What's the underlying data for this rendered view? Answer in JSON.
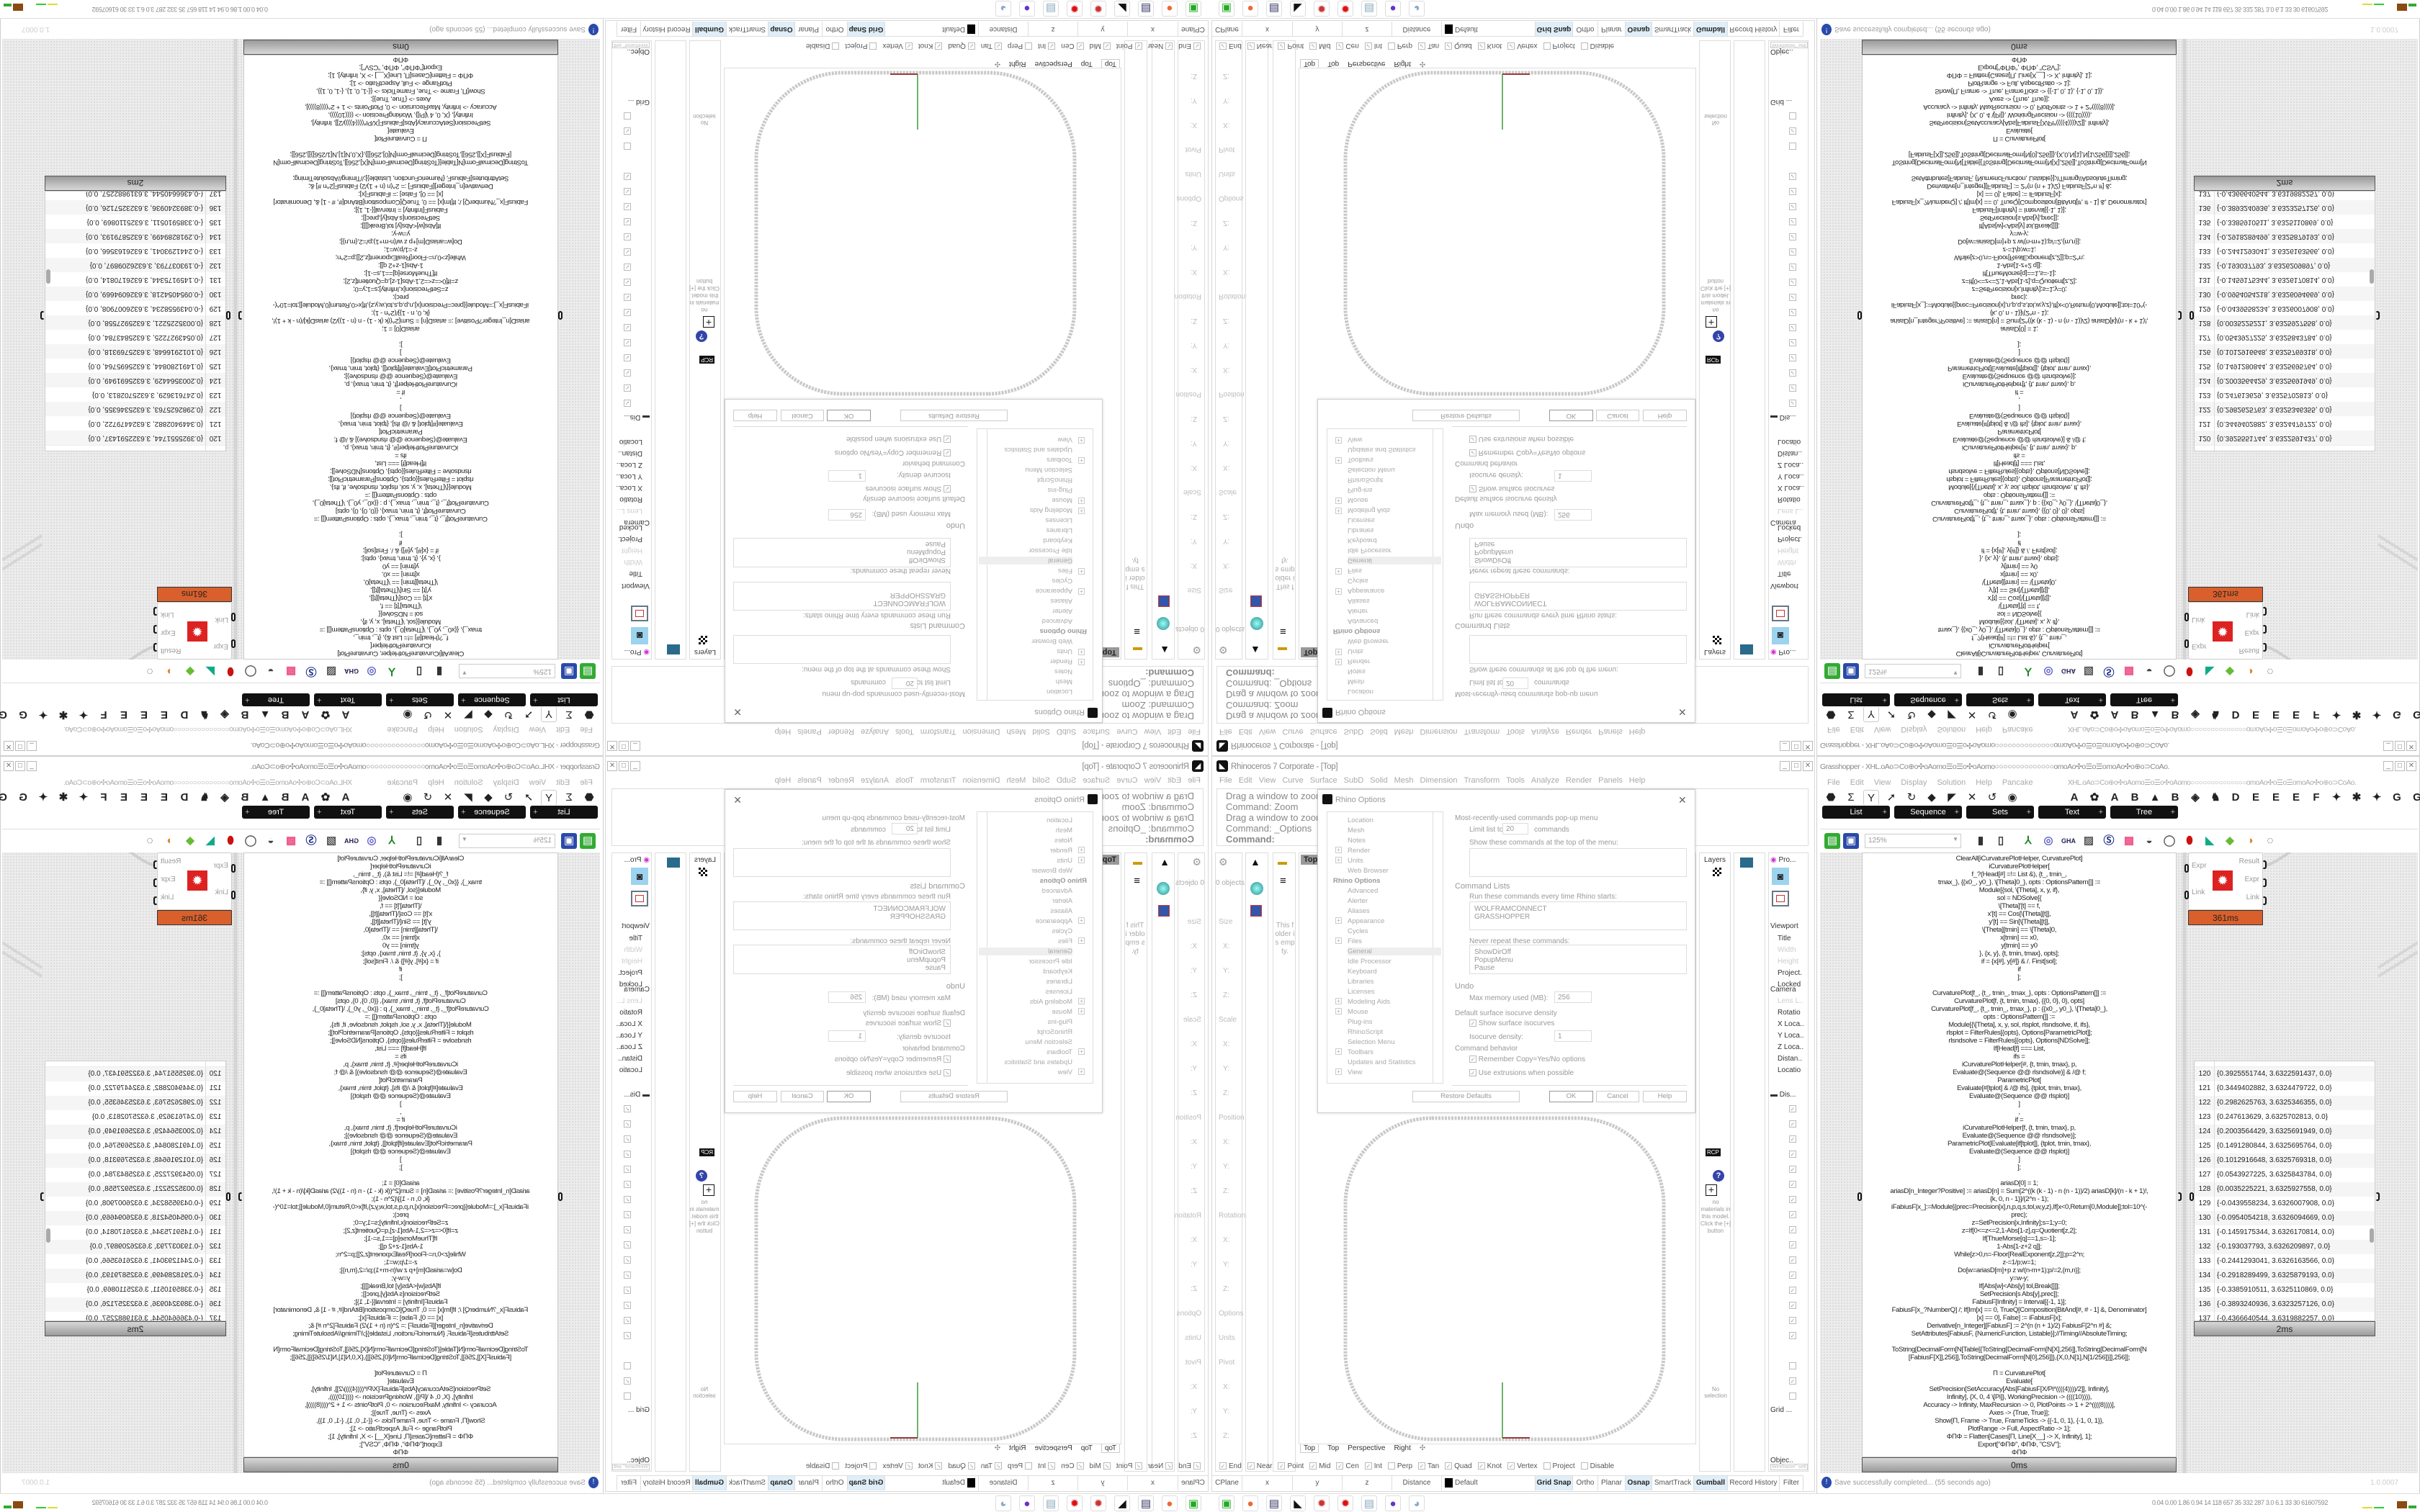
{
  "colors": {
    "gh_timing_orange": "#d9602c",
    "curve_gray": "#c8c8c8",
    "axis_green": "#3a9a3a",
    "axis_red": "#9a3a3a",
    "status_highlight": "#dfeef8"
  },
  "rhino": {
    "title": "Rhinoceros 7 Corporate - [Top]",
    "menu": [
      "File",
      "Edit",
      "View",
      "Curve",
      "Surface",
      "SubD",
      "Solid",
      "Mesh",
      "Dimension",
      "Transform",
      "Tools",
      "Analyze",
      "Render",
      "Panels",
      "Help"
    ],
    "command_history": [
      "Drag a window to zoom (",
      "Command: Zoom",
      "Drag a window to zoom (",
      "Command: _Options"
    ],
    "command_prompt": "Command:",
    "viewport_label": "Top",
    "left_panel": {
      "objects": "0 objects",
      "labels": [
        "Size",
        "X:",
        "Y:",
        "Z:",
        "Scale",
        "X:",
        "Y:",
        "Z:",
        "Position",
        "X:",
        "Y:",
        "Z:",
        "Rotation",
        "X:",
        "Y:",
        "Z:",
        "Options",
        "Units",
        "Pivot",
        "X:",
        "Y:",
        "Z:"
      ],
      "folder_empty": "This folder is empty."
    },
    "dialog": {
      "title": "Rhino Options",
      "tree": [
        {
          "label": "Location",
          "expand": false
        },
        {
          "label": "Mesh",
          "expand": false
        },
        {
          "label": "Notes",
          "expand": false
        },
        {
          "label": "Render",
          "expand": true
        },
        {
          "label": "Units",
          "expand": true
        },
        {
          "label": "Web Browser",
          "expand": false
        },
        {
          "label": "Rhino Options",
          "expand": false,
          "header": true
        },
        {
          "label": "Advanced",
          "expand": false
        },
        {
          "label": "Alerter",
          "expand": false
        },
        {
          "label": "Aliases",
          "expand": false
        },
        {
          "label": "Appearance",
          "expand": true
        },
        {
          "label": "Cycles",
          "expand": false
        },
        {
          "label": "Files",
          "expand": true
        },
        {
          "label": "General",
          "expand": false,
          "selected": true
        },
        {
          "label": "Idle Processor",
          "expand": false
        },
        {
          "label": "Keyboard",
          "expand": false
        },
        {
          "label": "Libraries",
          "expand": false
        },
        {
          "label": "Licenses",
          "expand": false
        },
        {
          "label": "Modeling Aids",
          "expand": true
        },
        {
          "label": "Mouse",
          "expand": true
        },
        {
          "label": "Plug-ins",
          "expand": false
        },
        {
          "label": "RhinoScript",
          "expand": false
        },
        {
          "label": "Selection Menu",
          "expand": false
        },
        {
          "label": "Toolbars",
          "expand": true
        },
        {
          "label": "Updates and Statistics",
          "expand": false
        },
        {
          "label": "View",
          "expand": true
        }
      ],
      "mru_heading": "Most-recently-used commands pop-up menu",
      "limit_label": "Limit list to",
      "limit_value": "20",
      "limit_suffix": "commands",
      "show_top_label": "Show these commands at the top of the menu:",
      "command_lists_heading": "Command Lists",
      "run_startup_label": "Run these commands every time Rhino starts:",
      "startup_commands": [
        "WOLFRAMCONNECT",
        "GRASSHOPPER"
      ],
      "never_repeat_label": "Never repeat these commands:",
      "never_repeat_commands": [
        "ShowDirOff",
        "PopupMenu",
        "Pause"
      ],
      "undo_heading": "Undo",
      "max_memory_label": "Max memory used (MB):",
      "max_memory_value": "256",
      "isocurve_heading": "Default surface isocurve density",
      "show_isocurves_label": "Show surface isocurves",
      "show_isocurves_checked": true,
      "isocurve_density_label": "Isocurve density:",
      "isocurve_density_value": "1",
      "command_behavior_heading": "Command behavior",
      "remember_copy_label": "Remember Copy=Yes/No options",
      "remember_copy_checked": true,
      "use_extrusions_label": "Use extrusions when possible",
      "use_extrusions_checked": true,
      "restore_defaults": "Restore Defaults",
      "ok": "OK",
      "cancel": "Cancel",
      "help": "Help"
    },
    "right_panels": {
      "layers_tab": "Layers",
      "materials_empty": "no materials in this model. Click the [+] button",
      "no_selection": "No selection",
      "properties_tab": "Pro...",
      "viewport_heading": "Viewport",
      "viewport_props": [
        "Title",
        "Width",
        "Height",
        "Project.",
        "Locked"
      ],
      "camera_heading": "Camera",
      "camera_props": [
        "Lens L..",
        "Rotatio",
        "X Loca..",
        "Y Loca..",
        "Z Loca..",
        "Distan..",
        "Locatio"
      ],
      "display_tab": "Dis...",
      "grid_heading": "Grid ...",
      "objects_heading": "Objec..",
      "display_mode_button": "Wireframe\" sett"
    },
    "viewport_tabs": [
      "Top",
      "Top",
      "Perspective",
      "Right"
    ],
    "osnaps": [
      {
        "label": "End",
        "checked": true
      },
      {
        "label": "Near",
        "checked": true
      },
      {
        "label": "Point",
        "checked": true
      },
      {
        "label": "Mid",
        "checked": true
      },
      {
        "label": "Cen",
        "checked": true
      },
      {
        "label": "Int",
        "checked": true
      },
      {
        "label": "Perp",
        "checked": false
      },
      {
        "label": "Tan",
        "checked": true
      },
      {
        "label": "Quad",
        "checked": true
      },
      {
        "label": "Knot",
        "checked": true
      },
      {
        "label": "Vertex",
        "checked": true
      },
      {
        "label": "Project",
        "checked": false
      },
      {
        "label": "Disable",
        "checked": false
      }
    ],
    "status": {
      "cplane": "CPlane",
      "x": "x",
      "y": "y",
      "z": "z",
      "distance": "Distance",
      "layer": "Default",
      "toggles": [
        {
          "label": "Grid Snap",
          "on": true
        },
        {
          "label": "Ortho",
          "on": false
        },
        {
          "label": "Planar",
          "on": false
        },
        {
          "label": "Osnap",
          "on": true
        },
        {
          "label": "SmartTrack",
          "on": false
        },
        {
          "label": "Gumball",
          "on": true
        },
        {
          "label": "Record History",
          "on": false
        },
        {
          "label": "Filter",
          "on": false
        }
      ]
    }
  },
  "grasshopper": {
    "title": "Grasshopper - XHL.oAo⊃Co⊕o✣oAomo☰o☰o✣oAomo○○○○○○○○○○○○○○omoAo✣o☰o☰omoAo✣o⊕o⊃CoAo.",
    "menu": [
      "File",
      "Edit",
      "View",
      "Display",
      "Solution",
      "Help",
      "Pancake"
    ],
    "menu_right": "XHL.oAo⊃Co⊕o✣oAomo☰o☰o✣oAomo○○○○○○○○○○○○○○omoAo✣o☰o☰omoAo✣o⊕o⊃CoAo.",
    "category_icons": [
      "params-icon",
      "maths-icon",
      "sets-icon",
      "vector-icon",
      "curve-icon",
      "surface-icon",
      "mesh-icon",
      "intersect-icon",
      "transform-icon",
      "display-icon"
    ],
    "plugin_labels": [
      "A",
      "✿",
      "A",
      "B",
      "▲",
      "B",
      "◈",
      "♞",
      "D",
      "E",
      "E",
      "E",
      "F",
      "✦",
      "✱",
      "✦",
      "G",
      "G"
    ],
    "subcategory_tabs": [
      "List",
      "Sequence",
      "Sets",
      "Text",
      "Tree"
    ],
    "zoom_level": "125%",
    "code_lines": [
      "ClearAll[iCurvaturePlotHelper, CurvaturePlot]",
      "iCurvaturePlotHelper[",
      "f_?(Head[#] =!= List &), {t_, tmin_,",
      "tmax_}, {{x0_, y0_}, \\[Theta]0_}, opts : OptionsPattern[]] :=",
      "Module[{sol, \\[Theta], x, y, if},",
      "sol = NDSolve[{",
      "\\[Theta]'[t] == f,",
      "x'[t] == Cos[\\[Theta][t]],",
      "y'[t] == Sin[\\[Theta][t]],",
      "\\[Theta][tmin] == \\[Theta]0,",
      "x[tmin] == x0,",
      "y[tmin] == y0",
      "}, {x, y}, {t, tmin, tmax}, opts];",
      "if = {x[#], y[#]} & /. First[sol];",
      "if",
      "];",
      "",
      "CurvaturePlot[f_, {t_, tmin_, tmax_}, opts : OptionsPattern[]] :=",
      "CurvaturePlot[f, {t, tmin, tmax}, {{0, 0}, 0}, opts]",
      "CurvaturePlot[f_, {t_, tmin_, tmax_}, p : {{x0_, y0_}, \\[Theta]0_},",
      "opts : OptionsPattern[]] :=",
      "Module[{\\[Theta], x, y, sol, rlsplot, rlsndsolve, if, ifs},",
      "rlsplot = FilterRules[{opts}, Options[ParametricPlot]];",
      "rlsndsolve = FilterRules[{opts}, Options[NDSolve]];",
      "If[Head[f] === List,",
      "ifs =",
      "iCurvaturePlotHelper[#, {t, tmin, tmax}, p,",
      "Evaluate@(Sequence @@ rlsndsolve)] & /@ f;",
      "ParametricPlot[",
      "Evaluate[#[tplot] & /@ ifs], {tplot, tmin, tmax},",
      "Evaluate@(Sequence @@ rlsplot)]",
      "]",
      ",",
      "if =",
      "iCurvaturePlotHelper[f, {t, tmin, tmax}, p,",
      "Evaluate@(Sequence @@ rlsndsolve)];",
      "ParametricPlot[Evaluate[if[tplot]], {tplot, tmin, tmax},",
      "Evaluate@(Sequence @@ rlsplot)]",
      "]",
      "];",
      "",
      "ariasD[0] = 1;",
      "ariasD[n_Integer?Positive] := ariasD[n] = Sum[2^((k (k - 1) - n (n - 1))/2) ariasD[k]/(n - k + 1)!,",
      "{k, 0, n - 1}]/(2^n - 1);",
      "iFabiusF[x_]:=Module[{prec=Precision[x],n,p,q,s,tol,w,y,z},If[x<0,Return[0,Module]];tol=10^(-",
      "prec);",
      "z=SetPrecision[x,Infinity];s=1;y=0;",
      "z=If[0<=z<=2,1-Abs[1-z],q=Quotient[z,2];",
      "If[ThueMorse[q]==1,s=-1];",
      "1-Abs[1-z+2 q]];",
      "While[z>0,n=-Floor[RealExponent[z,2]];p=2^n;",
      "z-=1/p;w=1;",
      "Do[w=ariasD[m]+p z w/(n-m+1);p/=2,{m,n}];",
      "y=w-y;",
      "If[Abs[w]<Abs[y] tol,Break[]]];",
      "SetPrecision[s Abs[y],prec]];",
      "FabiusF[Infinity] = Interval[{-1, 1}];",
      "FabiusF[x_?NumberQ] /; If[Im[x] == 0, TrueQ[Composition[BitAnd[#, # - 1] &, Denominator]",
      "[x] == 0], False] := iFabiusF[x];",
      "Derivative[n_Integer][FabiusF] := 2^(n (n + 1)/2) FabiusF[2^n #] &;",
      "SetAttributes[FabiusF, {NumericFunction, Listable}];//Timing//AbsoluteTiming;",
      "",
      "ToString[DecimalForm[N[Table[{ToString[DecimalForm[N[X],256]],ToString[DecimalForm[N",
      "[FabiusF[X]],256]],ToString[DecimalForm[N[0],256]]},{X,0,N[1],N[1/256]}]],256]];",
      "",
      "Π = CurvaturePlot[",
      "Evaluate[",
      "SetPrecision[SetAccuracy[Abs[FabiusF[X/Pi*((((4))))/2]], Infinity],",
      "Infinity], {X, 0, 4 \\[Pi]}, WorkingPrecision -> ((((10)))),",
      "Accuracy -> Infinity, MaxRecursion -> 0, PlotPoints -> 1 + 2^((((8))))],",
      "Axes -> {True, True}];",
      "Show[Π, Frame -> True, FrameTicks -> {{-1, 0, 1}, {-1, 0, 1}},",
      "PlotRange -> Full, AspectRatio -> 1];",
      "ΦΠΦ = Flatten[Cases[Π, Line[X__] -> X, Infinity], 1];",
      "Export[\"ΦΠΦ\", ΦΠΦ, \"CSV\"];",
      "ΦΠΦ"
    ],
    "code_timing": "0ms",
    "component": {
      "inputs": [
        "Expr",
        "Link"
      ],
      "outputs": [
        "Result",
        "Expr",
        "Link"
      ],
      "timing": "361ms"
    },
    "data_panel": {
      "rows": [
        {
          "index": "120",
          "value": "{0.3925551744, 3.6322591437, 0.0}"
        },
        {
          "index": "121",
          "value": "{0.3449402882, 3.6324479722, 0.0}"
        },
        {
          "index": "122",
          "value": "{0.2982625763, 3.6325346355, 0.0}"
        },
        {
          "index": "123",
          "value": "{0.247613629, 3.6325702813, 0.0}"
        },
        {
          "index": "124",
          "value": "{0.2003564429, 3.6325691949, 0.0}"
        },
        {
          "index": "125",
          "value": "{0.1491280844, 3.6325695764, 0.0}"
        },
        {
          "index": "126",
          "value": "{0.1012916648, 3.6325769318, 0.0}"
        },
        {
          "index": "127",
          "value": "{0.0543927225, 3.6325843784, 0.0}"
        },
        {
          "index": "128",
          "value": "{0.0035225221, 3.6325927558, 0.0}"
        },
        {
          "index": "129",
          "value": "{-0.0439558234, 3.6326007908, 0.0}"
        },
        {
          "index": "130",
          "value": "{-0.0954054218, 3.6326094669, 0.0}"
        },
        {
          "index": "131",
          "value": "{-0.1459175344, 3.6326170814, 0.0}"
        },
        {
          "index": "132",
          "value": "{-0.193037793, 3.6326209897, 0.0}"
        },
        {
          "index": "133",
          "value": "{-0.2441293041, 3.6326163566, 0.0}"
        },
        {
          "index": "134",
          "value": "{-0.2918289499, 3.6325879193, 0.0}"
        },
        {
          "index": "135",
          "value": "{-0.3385910511, 3.6325110869, 0.0}"
        },
        {
          "index": "136",
          "value": "{-0.3893240936, 3.6323257126, 0.0}"
        },
        {
          "index": "137",
          "value": "{-0.4366640544, 3.6319882257, 0.0}"
        }
      ],
      "timing": "2ms"
    },
    "status_message": "Save successfully completed... (55 seconds ago)",
    "version": "1.0.0007"
  },
  "taskbar": {
    "apps": [
      "terminal-icon",
      "firefox-icon",
      "floppy-64-icon",
      "rhino-icon",
      "wolfram-icon",
      "mathematica-icon",
      "notepad-icon",
      "discord-icon",
      "paint-icon"
    ],
    "perf_readout": "0.04 0.00 1.86 0.94 14 118 657 35 332 287 3.0 6.1 33 30 61607592"
  }
}
